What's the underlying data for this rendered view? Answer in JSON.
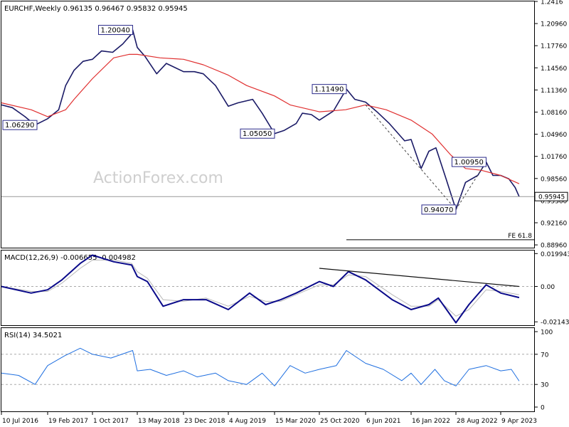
{
  "chart_data": [
    {
      "type": "line",
      "panel": "price",
      "header": "EURCHF,Weekly  0.96135 0.96467 0.95832 0.95945",
      "watermark": "ActionForex.com",
      "ylim": [
        0.8856,
        1.2416
      ],
      "yticks": [
        {
          "v": 1.2416,
          "label": "1.2416"
        },
        {
          "v": 1.2096,
          "label": "1.20960"
        },
        {
          "v": 1.1776,
          "label": "1.17760"
        },
        {
          "v": 1.1456,
          "label": "1.14560"
        },
        {
          "v": 1.1136,
          "label": "1.11360"
        },
        {
          "v": 1.0816,
          "label": "1.08160"
        },
        {
          "v": 1.0496,
          "label": "1.04960"
        },
        {
          "v": 1.0176,
          "label": "1.01760"
        },
        {
          "v": 0.9856,
          "label": "0.98560"
        },
        {
          "v": 0.9536,
          "label": "0.95360"
        },
        {
          "v": 0.9216,
          "label": "0.92160"
        },
        {
          "v": 0.8896,
          "label": "0.88960"
        }
      ],
      "last_price": {
        "v": 0.95945,
        "label": "0.95945"
      },
      "fe_level": {
        "v": 0.897,
        "label": "FE 61.8"
      },
      "series": [
        {
          "role": "price",
          "color": "#1a1a66",
          "points": [
            [
              "2016-07-10",
              1.092
            ],
            [
              "2016-09-01",
              1.088
            ],
            [
              "2016-11-01",
              1.075
            ],
            [
              "2016-12-20",
              1.0629
            ],
            [
              "2017-02-19",
              1.072
            ],
            [
              "2017-04-15",
              1.085
            ],
            [
              "2017-05-20",
              1.12
            ],
            [
              "2017-07-01",
              1.142
            ],
            [
              "2017-08-15",
              1.155
            ],
            [
              "2017-10-01",
              1.158
            ],
            [
              "2017-11-15",
              1.17
            ],
            [
              "2018-01-10",
              1.168
            ],
            [
              "2018-03-01",
              1.18
            ],
            [
              "2018-04-10",
              1.193
            ],
            [
              "2018-04-20",
              1.2004
            ],
            [
              "2018-05-13",
              1.175
            ],
            [
              "2018-06-20",
              1.162
            ],
            [
              "2018-08-15",
              1.137
            ],
            [
              "2018-10-01",
              1.152
            ],
            [
              "2018-12-23",
              1.14
            ],
            [
              "2019-02-15",
              1.14
            ],
            [
              "2019-04-01",
              1.137
            ],
            [
              "2019-06-01",
              1.12
            ],
            [
              "2019-08-04",
              1.09
            ],
            [
              "2019-09-20",
              1.095
            ],
            [
              "2019-11-30",
              1.1
            ],
            [
              "2020-01-15",
              1.08
            ],
            [
              "2020-03-15",
              1.0505
            ],
            [
              "2020-05-01",
              1.055
            ],
            [
              "2020-07-01",
              1.065
            ],
            [
              "2020-08-01",
              1.08
            ],
            [
              "2020-09-15",
              1.078
            ],
            [
              "2020-10-25",
              1.07
            ],
            [
              "2021-01-01",
              1.083
            ],
            [
              "2021-03-05",
              1.1149
            ],
            [
              "2021-04-15",
              1.1
            ],
            [
              "2021-06-06",
              1.096
            ],
            [
              "2021-08-01",
              1.082
            ],
            [
              "2021-10-01",
              1.065
            ],
            [
              "2021-12-15",
              1.04
            ],
            [
              "2022-01-16",
              1.042
            ],
            [
              "2022-03-07",
              1.0
            ],
            [
              "2022-04-15",
              1.025
            ],
            [
              "2022-05-20",
              1.03
            ],
            [
              "2022-07-10",
              0.985
            ],
            [
              "2022-08-28",
              0.9407
            ],
            [
              "2022-10-15",
              0.98
            ],
            [
              "2022-12-15",
              0.99
            ],
            [
              "2023-01-26",
              1.0095
            ],
            [
              "2023-03-01",
              0.99
            ],
            [
              "2023-04-09",
              0.99
            ],
            [
              "2023-05-20",
              0.985
            ],
            [
              "2023-06-20",
              0.9725
            ],
            [
              "2023-07-10",
              0.95945
            ]
          ]
        },
        {
          "role": "moving-average",
          "color": "#e03030",
          "points": [
            [
              "2016-07-10",
              1.095
            ],
            [
              "2016-12-01",
              1.085
            ],
            [
              "2017-02-19",
              1.075
            ],
            [
              "2017-05-20",
              1.085
            ],
            [
              "2017-07-01",
              1.1
            ],
            [
              "2017-10-01",
              1.13
            ],
            [
              "2018-01-15",
              1.16
            ],
            [
              "2018-04-01",
              1.165
            ],
            [
              "2018-05-13",
              1.165
            ],
            [
              "2018-09-01",
              1.16
            ],
            [
              "2018-12-23",
              1.158
            ],
            [
              "2019-04-01",
              1.15
            ],
            [
              "2019-08-04",
              1.135
            ],
            [
              "2019-11-01",
              1.12
            ],
            [
              "2020-03-15",
              1.105
            ],
            [
              "2020-06-01",
              1.092
            ],
            [
              "2020-10-25",
              1.082
            ],
            [
              "2021-03-01",
              1.085
            ],
            [
              "2021-06-06",
              1.092
            ],
            [
              "2021-09-15",
              1.085
            ],
            [
              "2022-01-16",
              1.07
            ],
            [
              "2022-05-01",
              1.05
            ],
            [
              "2022-08-01",
              1.02
            ],
            [
              "2022-10-15",
              1.0
            ],
            [
              "2023-01-01",
              0.9975
            ],
            [
              "2023-04-09",
              0.99
            ],
            [
              "2023-07-10",
              0.978
            ]
          ]
        }
      ],
      "annotations": [
        {
          "label": "1.20040",
          "date": "2018-04-20",
          "v": 1.2004,
          "side": "left"
        },
        {
          "label": "1.06290",
          "date": "2016-12-20",
          "v": 1.0629,
          "side": "left"
        },
        {
          "label": "1.11490",
          "date": "2021-03-05",
          "v": 1.1149,
          "side": "left"
        },
        {
          "label": "1.05050",
          "date": "2020-03-15",
          "v": 1.0505,
          "side": "left"
        },
        {
          "label": "1.00950",
          "date": "2023-01-26",
          "v": 1.0095,
          "side": "left"
        },
        {
          "label": "0.94070",
          "date": "2022-08-28",
          "v": 0.9407,
          "side": "left"
        }
      ],
      "trendlines": [
        {
          "from": [
            "2021-06-06",
            1.092
          ],
          "to": [
            "2022-08-28",
            0.9407
          ],
          "style": "dashed"
        },
        {
          "from": [
            "2022-08-28",
            0.9407
          ],
          "to": [
            "2023-01-26",
            1.0095
          ],
          "style": "dashed"
        }
      ]
    },
    {
      "type": "line",
      "panel": "macd",
      "header": "MACD(12,26,9) -0.006655 -0.004982",
      "ylim": [
        -0.0235,
        0.0218
      ],
      "yticks": [
        {
          "v": 0.019943,
          "label": "0.019943"
        },
        {
          "v": 0.0,
          "label": "0.00"
        },
        {
          "v": -0.021434,
          "label": "-0.021434"
        }
      ],
      "series": [
        {
          "role": "macd",
          "color": "#0a0a8a",
          "points": [
            [
              "2016-07-10",
              0.0
            ],
            [
              "2016-12-01",
              -0.004
            ],
            [
              "2017-02-19",
              -0.002
            ],
            [
              "2017-05-01",
              0.004
            ],
            [
              "2017-08-01",
              0.014
            ],
            [
              "2017-10-01",
              0.019
            ],
            [
              "2018-01-15",
              0.015
            ],
            [
              "2018-04-15",
              0.013
            ],
            [
              "2018-05-13",
              0.006
            ],
            [
              "2018-07-01",
              0.003
            ],
            [
              "2018-09-15",
              -0.012
            ],
            [
              "2018-12-23",
              -0.008
            ],
            [
              "2019-04-15",
              -0.008
            ],
            [
              "2019-08-04",
              -0.014
            ],
            [
              "2019-11-15",
              -0.004
            ],
            [
              "2020-02-01",
              -0.011
            ],
            [
              "2020-04-15",
              -0.008
            ],
            [
              "2020-07-01",
              -0.004
            ],
            [
              "2020-10-25",
              0.003
            ],
            [
              "2021-01-01",
              0.0
            ],
            [
              "2021-03-15",
              0.009
            ],
            [
              "2021-06-06",
              0.004
            ],
            [
              "2021-10-15",
              -0.008
            ],
            [
              "2022-01-16",
              -0.014
            ],
            [
              "2022-04-15",
              -0.011
            ],
            [
              "2022-06-01",
              -0.007
            ],
            [
              "2022-08-28",
              -0.022
            ],
            [
              "2022-11-01",
              -0.011
            ],
            [
              "2023-01-26",
              0.001
            ],
            [
              "2023-04-09",
              -0.004
            ],
            [
              "2023-07-10",
              -0.0067
            ]
          ]
        },
        {
          "role": "signal",
          "color": "#b8b8b8",
          "points": [
            [
              "2016-07-10",
              0.0
            ],
            [
              "2016-12-01",
              -0.003
            ],
            [
              "2017-02-19",
              -0.003
            ],
            [
              "2017-05-01",
              0.002
            ],
            [
              "2017-08-01",
              0.011
            ],
            [
              "2017-10-01",
              0.016
            ],
            [
              "2018-01-15",
              0.016
            ],
            [
              "2018-04-15",
              0.014
            ],
            [
              "2018-05-13",
              0.009
            ],
            [
              "2018-07-01",
              0.005
            ],
            [
              "2018-09-15",
              -0.008
            ],
            [
              "2018-12-23",
              -0.009
            ],
            [
              "2019-04-15",
              -0.007
            ],
            [
              "2019-08-04",
              -0.012
            ],
            [
              "2019-11-15",
              -0.006
            ],
            [
              "2020-02-01",
              -0.009
            ],
            [
              "2020-04-15",
              -0.009
            ],
            [
              "2020-07-01",
              -0.005
            ],
            [
              "2020-10-25",
              0.001
            ],
            [
              "2021-01-01",
              0.001
            ],
            [
              "2021-03-15",
              0.007
            ],
            [
              "2021-06-06",
              0.006
            ],
            [
              "2021-10-15",
              -0.005
            ],
            [
              "2022-01-16",
              -0.012
            ],
            [
              "2022-04-15",
              -0.012
            ],
            [
              "2022-06-01",
              -0.008
            ],
            [
              "2022-08-28",
              -0.018
            ],
            [
              "2022-11-01",
              -0.014
            ],
            [
              "2023-01-26",
              -0.002
            ],
            [
              "2023-04-09",
              -0.003
            ],
            [
              "2023-07-10",
              -0.005
            ]
          ]
        }
      ],
      "trendlines": [
        {
          "from": [
            "2020-10-25",
            0.011
          ],
          "to": [
            "2023-07-10",
            0.0
          ],
          "style": "solid"
        }
      ]
    },
    {
      "type": "line",
      "panel": "rsi",
      "header": "RSI(14) 34.5021",
      "ylim": [
        0,
        100
      ],
      "yticks": [
        {
          "v": 100,
          "label": "100"
        },
        {
          "v": 70,
          "label": "70"
        },
        {
          "v": 30,
          "label": "30"
        },
        {
          "v": 0,
          "label": "0"
        }
      ],
      "series": [
        {
          "role": "rsi",
          "color": "#1f6fe0",
          "points": [
            [
              "2016-07-10",
              45
            ],
            [
              "2016-10-01",
              42
            ],
            [
              "2016-12-20",
              30
            ],
            [
              "2017-02-19",
              55
            ],
            [
              "2017-05-15",
              68
            ],
            [
              "2017-08-01",
              78
            ],
            [
              "2017-10-01",
              70
            ],
            [
              "2018-01-01",
              65
            ],
            [
              "2018-04-20",
              75
            ],
            [
              "2018-05-13",
              48
            ],
            [
              "2018-07-15",
              50
            ],
            [
              "2018-10-01",
              42
            ],
            [
              "2018-12-23",
              48
            ],
            [
              "2019-03-01",
              40
            ],
            [
              "2019-06-01",
              45
            ],
            [
              "2019-08-04",
              35
            ],
            [
              "2019-11-01",
              30
            ],
            [
              "2020-01-15",
              45
            ],
            [
              "2020-03-15",
              28
            ],
            [
              "2020-06-01",
              55
            ],
            [
              "2020-08-15",
              45
            ],
            [
              "2020-10-25",
              50
            ],
            [
              "2021-01-15",
              55
            ],
            [
              "2021-03-05",
              75
            ],
            [
              "2021-06-06",
              58
            ],
            [
              "2021-09-01",
              50
            ],
            [
              "2021-12-01",
              35
            ],
            [
              "2022-01-16",
              45
            ],
            [
              "2022-03-07",
              30
            ],
            [
              "2022-05-15",
              50
            ],
            [
              "2022-07-01",
              35
            ],
            [
              "2022-08-28",
              28
            ],
            [
              "2022-11-01",
              50
            ],
            [
              "2023-01-26",
              55
            ],
            [
              "2023-04-09",
              48
            ],
            [
              "2023-06-01",
              50
            ],
            [
              "2023-07-10",
              34.5
            ]
          ]
        }
      ]
    }
  ],
  "x_axis": {
    "ticks": [
      {
        "date": "2016-07-10",
        "label": "10 Jul 2016"
      },
      {
        "date": "2017-02-19",
        "label": "19 Feb 2017"
      },
      {
        "date": "2017-10-01",
        "label": "1 Oct 2017"
      },
      {
        "date": "2018-05-13",
        "label": "13 May 2018"
      },
      {
        "date": "2018-12-23",
        "label": "23 Dec 2018"
      },
      {
        "date": "2019-08-04",
        "label": "4 Aug 2019"
      },
      {
        "date": "2020-03-15",
        "label": "15 Mar 2020"
      },
      {
        "date": "2020-10-25",
        "label": "25 Oct 2020"
      },
      {
        "date": "2021-06-06",
        "label": "6 Jun 2021"
      },
      {
        "date": "2022-01-16",
        "label": "16 Jan 2022"
      },
      {
        "date": "2022-08-28",
        "label": "28 Aug 2022"
      },
      {
        "date": "2023-04-09",
        "label": "9 Apr 2023"
      }
    ]
  },
  "colors": {
    "price": "#1a1a66",
    "ma": "#e03030",
    "macd": "#0a0a8a",
    "signal": "#b8b8b8",
    "rsi": "#1f6fe0",
    "label_border": "#2a2a8a",
    "grid_dashed": "#aaaaaa",
    "axis": "#000000"
  }
}
